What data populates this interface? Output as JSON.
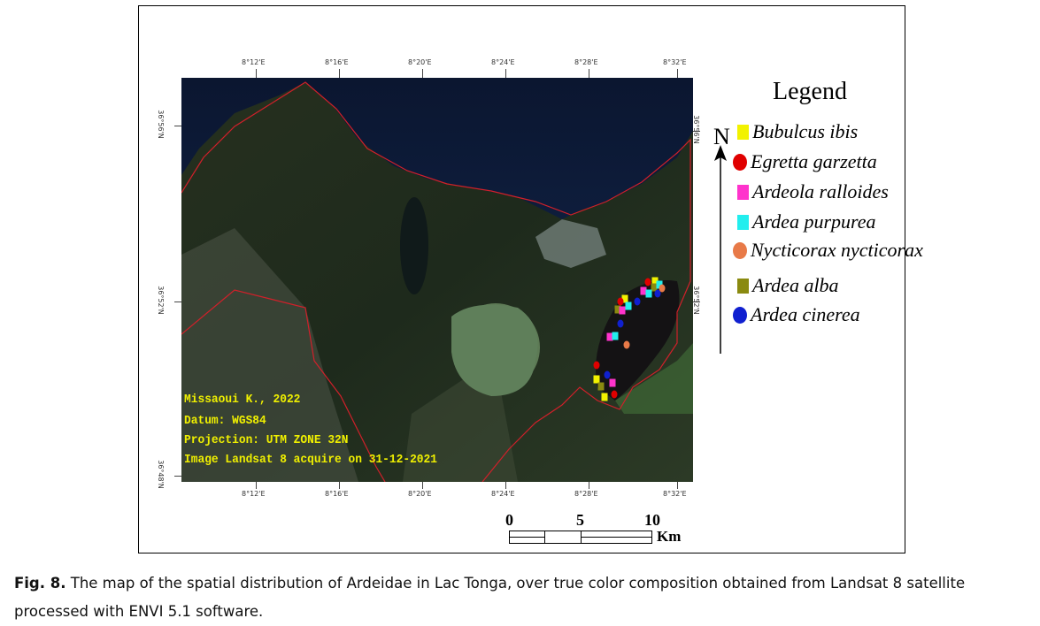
{
  "map": {
    "top_longitude_labels": [
      "8°12'E",
      "8°16'E",
      "8°20'E",
      "8°24'E",
      "8°28'E",
      "8°32'E"
    ],
    "bottom_longitude_labels": [
      "8°12'E",
      "8°16'E",
      "8°20'E",
      "8°24'E",
      "8°28'E",
      "8°32'E"
    ],
    "left_latitude_labels": [
      "36°56'N",
      "36°52'N",
      "36°48'N"
    ],
    "right_latitude_labels": [
      "36°56'N",
      "36°52'N"
    ],
    "overlay_text": [
      "Missaoui K., 2022",
      "Datum: WGS84",
      "Projection: UTM ZONE 32N",
      "Image Landsat 8 acquire on 31-12-2021"
    ],
    "overlay_text_color": "#f0f000",
    "boundary_color": "#d0202a"
  },
  "legend": {
    "title": "Legend",
    "items": [
      {
        "label": "Bubulcus ibis",
        "color": "#f2f200",
        "shape": "square"
      },
      {
        "label": "Egretta garzetta",
        "color": "#e00000",
        "shape": "circle"
      },
      {
        "label": "Ardeola ralloides",
        "color": "#ff33cc",
        "shape": "square"
      },
      {
        "label": "Ardea purpurea",
        "color": "#22eeee",
        "shape": "square"
      },
      {
        "label": "Nycticorax nycticorax",
        "color": "#e87a48",
        "shape": "circle"
      },
      {
        "label": "Ardea alba",
        "color": "#8a8a10",
        "shape": "square"
      },
      {
        "label": "Ardea cinerea",
        "color": "#1020d0",
        "shape": "circle"
      }
    ]
  },
  "north_arrow": {
    "label": "N"
  },
  "scale_bar": {
    "labels": [
      "0",
      "5",
      "10"
    ],
    "unit": "Km"
  },
  "caption": {
    "label": "Fig. 8.",
    "text": " The map of the spatial distribution of Ardeidae in Lac Tonga, over true color composition obtained from Landsat 8 satellite processed with ENVI 5.1 software."
  }
}
